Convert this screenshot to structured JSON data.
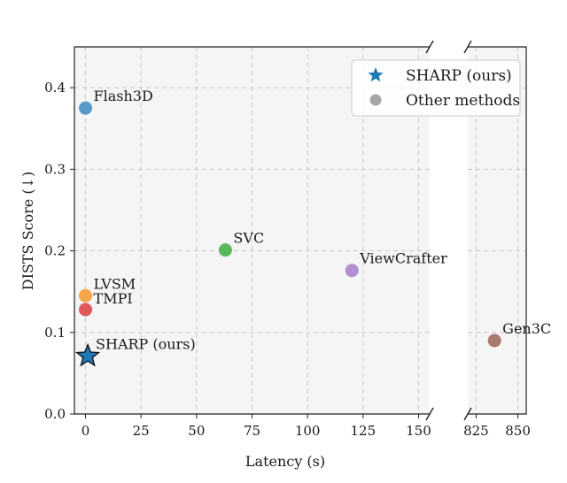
{
  "chart_data": {
    "type": "scatter",
    "xlabel": "Latency (s)",
    "ylabel": "DISTS Score (↓)",
    "ylim": [
      0.0,
      0.45
    ],
    "y_ticks": [
      0.0,
      0.1,
      0.2,
      0.3,
      0.4
    ],
    "y_tick_labels": [
      "0.0",
      "0.1",
      "0.2",
      "0.3",
      "0.4"
    ],
    "x_broken_axis": true,
    "x_segments": [
      {
        "xlim": [
          -5,
          155
        ],
        "ticks": [
          0,
          25,
          50,
          75,
          100,
          125,
          150
        ],
        "tick_labels": [
          "0",
          "25",
          "50",
          "75",
          "100",
          "125",
          "150"
        ]
      },
      {
        "xlim": [
          820,
          855
        ],
        "ticks": [
          825,
          850
        ],
        "tick_labels": [
          "825",
          "850"
        ]
      }
    ],
    "grid": true,
    "legend_position": "top-right",
    "legend": [
      {
        "label": "SHARP (ours)",
        "marker": "star",
        "color": "#1f77b4"
      },
      {
        "label": "Other methods",
        "marker": "circle",
        "color": "#a6a6a6"
      }
    ],
    "points": [
      {
        "name": "Flash3D",
        "x": 0,
        "y": 0.375,
        "color": "#5a9ac9",
        "marker": "circle",
        "label_pos": "above-right"
      },
      {
        "name": "SVC",
        "x": 63,
        "y": 0.201,
        "color": "#5cb85c",
        "marker": "circle",
        "label_pos": "above-right"
      },
      {
        "name": "ViewCrafter",
        "x": 120,
        "y": 0.176,
        "color": "#b48fd1",
        "marker": "circle",
        "label_pos": "above-right"
      },
      {
        "name": "LVSM",
        "x": 0,
        "y": 0.145,
        "color": "#f7a64a",
        "marker": "circle",
        "label_pos": "above-right"
      },
      {
        "name": "TMPI",
        "x": 0,
        "y": 0.128,
        "color": "#e0585a",
        "marker": "circle",
        "label_pos": "right"
      },
      {
        "name": "SHARP (ours)",
        "x": 1,
        "y": 0.071,
        "color": "#1f77b4",
        "marker": "star",
        "label_pos": "above-right"
      },
      {
        "name": "Gen3C",
        "x": 836,
        "y": 0.09,
        "color": "#a97a6e",
        "marker": "circle",
        "label_pos": "above-right"
      }
    ]
  }
}
